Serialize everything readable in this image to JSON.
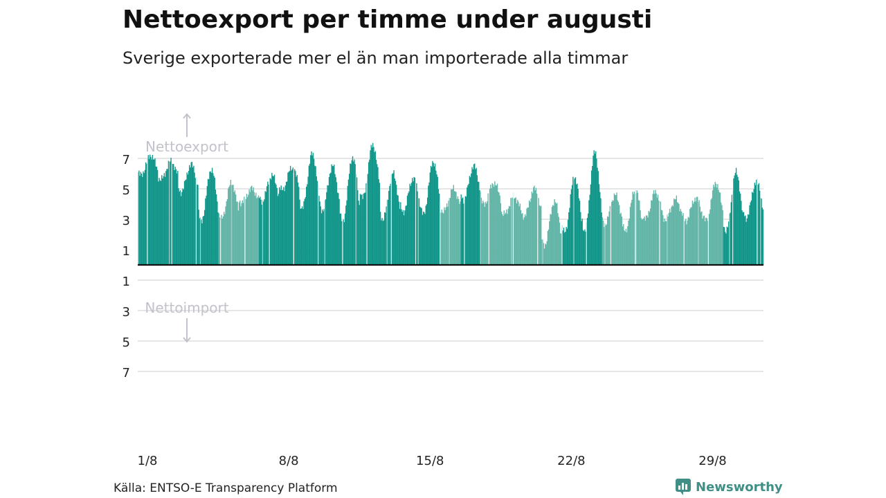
{
  "header": {
    "title": "Nettoexport per timme under augusti",
    "subtitle": "Sverige exporterade mer el än man importerade alla timmar"
  },
  "footer": {
    "source": "Källa: ENTSO-E Transparency Platform",
    "brand": "Newsworthy"
  },
  "colors": {
    "strong": "#12968a",
    "light": "#62b5a7",
    "grid": "#dddddd",
    "annotation": "#c2c2cc",
    "axis_text": "#222222"
  },
  "chart_data": {
    "type": "bar",
    "x_unit": "hour",
    "x_start": "2023-08-01 00:00",
    "annotations": {
      "up": "Nettoexport",
      "down": "Nettoimport"
    },
    "y_ticks_positive": [
      "1",
      "3",
      "5",
      "7"
    ],
    "y_ticks_negative": [
      "1",
      "3",
      "5",
      "7"
    ],
    "x_ticks": [
      {
        "label": "1/8",
        "day": 1
      },
      {
        "label": "8/8",
        "day": 8
      },
      {
        "label": "15/8",
        "day": 15
      },
      {
        "label": "22/8",
        "day": 22
      },
      {
        "label": "29/8",
        "day": 29
      }
    ],
    "ylim": [
      -8,
      8
    ],
    "daily_max": [
      7.2,
      6.8,
      6.6,
      6.3,
      5.4,
      5.0,
      5.9,
      6.4,
      7.3,
      6.5,
      7.1,
      7.9,
      6.0,
      5.7,
      6.8,
      5.0,
      6.5,
      5.4,
      4.5,
      5.0,
      4.2,
      5.8,
      7.4,
      4.6,
      5.0,
      4.8,
      4.3,
      4.4,
      5.4,
      6.1,
      5.5
    ],
    "daily_min": [
      5.9,
      5.6,
      4.8,
      2.9,
      3.0,
      4.1,
      4.2,
      4.9,
      3.7,
      3.6,
      2.8,
      4.4,
      3.0,
      3.5,
      3.3,
      3.5,
      4.3,
      4.0,
      3.3,
      3.2,
      1.3,
      2.1,
      2.2,
      2.7,
      2.2,
      3.0,
      3.0,
      2.9,
      2.9,
      2.2,
      3.1
    ],
    "hourly_values": []
  }
}
